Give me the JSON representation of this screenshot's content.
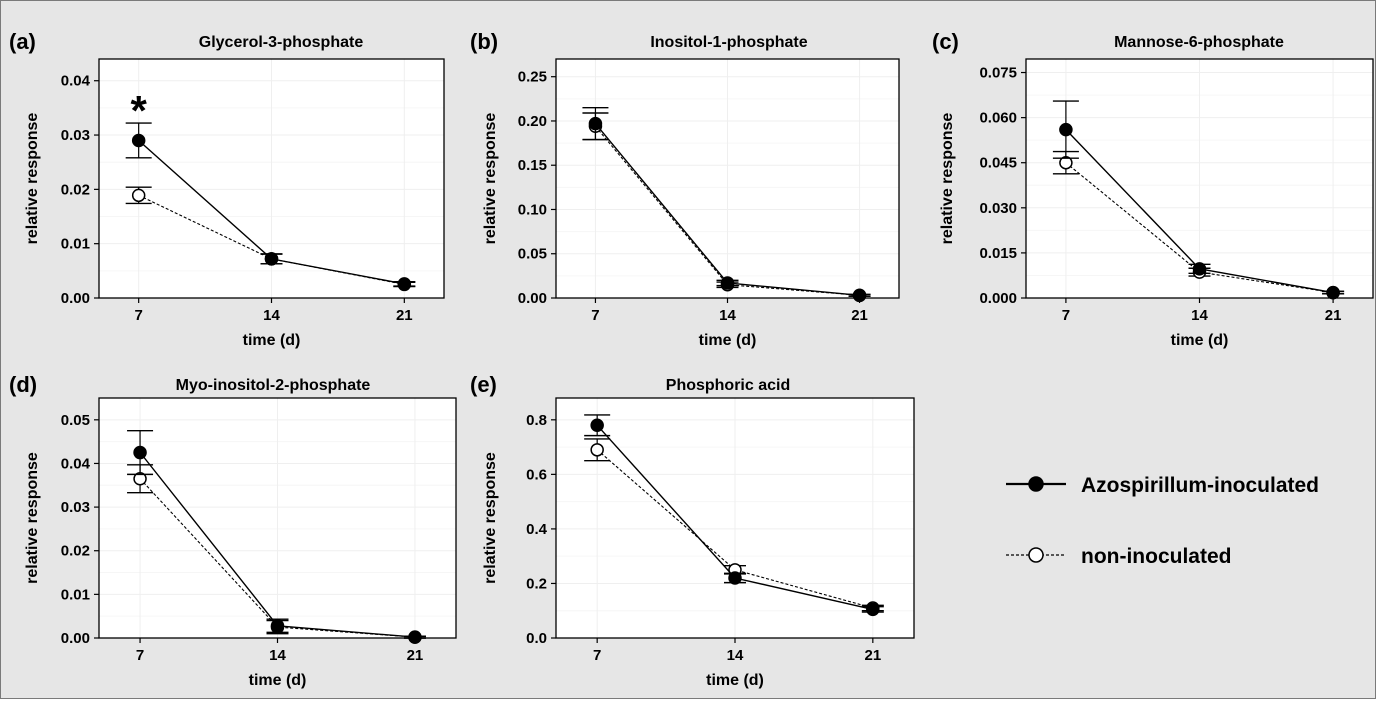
{
  "chart_data": [
    {
      "type": "line",
      "panel": "(a)",
      "title": "Glycerol-3-phosphate",
      "xlabel": "time (d)",
      "ylabel": "relative response",
      "x": [
        7,
        14,
        21
      ],
      "x_ticks": [
        "7",
        "14",
        "21"
      ],
      "ylim": [
        0,
        0.044
      ],
      "y_ticks": [
        "0.00",
        "0.01",
        "0.02",
        "0.03",
        "0.04"
      ],
      "grid": true,
      "annotation": "*",
      "series": [
        {
          "name": "Azospirillum-inoculated",
          "values": [
            0.029,
            0.0072,
            0.0026
          ],
          "err": [
            0.0032,
            0.0009,
            0.0004
          ]
        },
        {
          "name": "non-inoculated",
          "values": [
            0.0189,
            0.0072,
            0.0025
          ],
          "err": [
            0.0015,
            0.0009,
            0.0004
          ]
        }
      ]
    },
    {
      "type": "line",
      "panel": "(b)",
      "title": "Inositol-1-phosphate",
      "xlabel": "time (d)",
      "ylabel": "relative response",
      "x": [
        7,
        14,
        21
      ],
      "x_ticks": [
        "7",
        "14",
        "21"
      ],
      "ylim": [
        0,
        0.27
      ],
      "y_ticks": [
        "0.00",
        "0.05",
        "0.10",
        "0.15",
        "0.20",
        "0.25"
      ],
      "grid": true,
      "series": [
        {
          "name": "Azospirillum-inoculated",
          "values": [
            0.197,
            0.017,
            0.003
          ],
          "err": [
            0.018,
            0.003,
            0.001
          ]
        },
        {
          "name": "non-inoculated",
          "values": [
            0.194,
            0.015,
            0.003
          ],
          "err": [
            0.015,
            0.003,
            0.001
          ]
        }
      ]
    },
    {
      "type": "line",
      "panel": "(c)",
      "title": "Mannose-6-phosphate",
      "xlabel": "time (d)",
      "ylabel": "relative response",
      "x": [
        7,
        14,
        21
      ],
      "x_ticks": [
        "7",
        "14",
        "21"
      ],
      "ylim": [
        0,
        0.0795
      ],
      "y_ticks": [
        "0.000",
        "0.015",
        "0.030",
        "0.045",
        "0.060",
        "0.075"
      ],
      "grid": true,
      "series": [
        {
          "name": "Azospirillum-inoculated",
          "values": [
            0.056,
            0.0097,
            0.0018
          ],
          "err": [
            0.0095,
            0.0015,
            0.0004
          ]
        },
        {
          "name": "non-inoculated",
          "values": [
            0.045,
            0.0086,
            0.0018
          ],
          "err": [
            0.0037,
            0.0013,
            0.0004
          ]
        }
      ]
    },
    {
      "type": "line",
      "panel": "(d)",
      "title": "Myo-inositol-2-phosphate",
      "xlabel": "time (d)",
      "ylabel": "relative response",
      "x": [
        7,
        14,
        21
      ],
      "x_ticks": [
        "7",
        "14",
        "21"
      ],
      "ylim": [
        0,
        0.055
      ],
      "y_ticks": [
        "0.00",
        "0.01",
        "0.02",
        "0.03",
        "0.04",
        "0.05"
      ],
      "grid": true,
      "series": [
        {
          "name": "Azospirillum-inoculated",
          "values": [
            0.0425,
            0.0028,
            0.0002
          ],
          "err": [
            0.005,
            0.0015,
            0.0002
          ]
        },
        {
          "name": "non-inoculated",
          "values": [
            0.0365,
            0.0025,
            0.0002
          ],
          "err": [
            0.0032,
            0.0015,
            0.0002
          ]
        }
      ]
    },
    {
      "type": "line",
      "panel": "(e)",
      "title": "Phosphoric acid",
      "xlabel": "time (d)",
      "ylabel": "relative response",
      "x": [
        7,
        14,
        21
      ],
      "x_ticks": [
        "7",
        "14",
        "21"
      ],
      "ylim": [
        0,
        0.88
      ],
      "y_ticks": [
        "0.0",
        "0.2",
        "0.4",
        "0.6",
        "0.8"
      ],
      "grid": true,
      "series": [
        {
          "name": "Azospirillum-inoculated",
          "values": [
            0.78,
            0.22,
            0.105
          ],
          "err": [
            0.038,
            0.017,
            0.01
          ]
        },
        {
          "name": "non-inoculated",
          "values": [
            0.69,
            0.25,
            0.11
          ],
          "err": [
            0.04,
            0.015,
            0.01
          ]
        }
      ]
    }
  ],
  "legend": {
    "placement": "right",
    "items": [
      {
        "label": "Azospirillum-inoculated",
        "marker": "filled-circle",
        "line": "solid"
      },
      {
        "label": "non-inoculated",
        "marker": "open-circle",
        "line": "dashed"
      }
    ]
  },
  "colors": {
    "figure_background": "#e6e6e6",
    "panel_background": "#ffffff",
    "grid": "#efefef",
    "ink": "#000000"
  }
}
